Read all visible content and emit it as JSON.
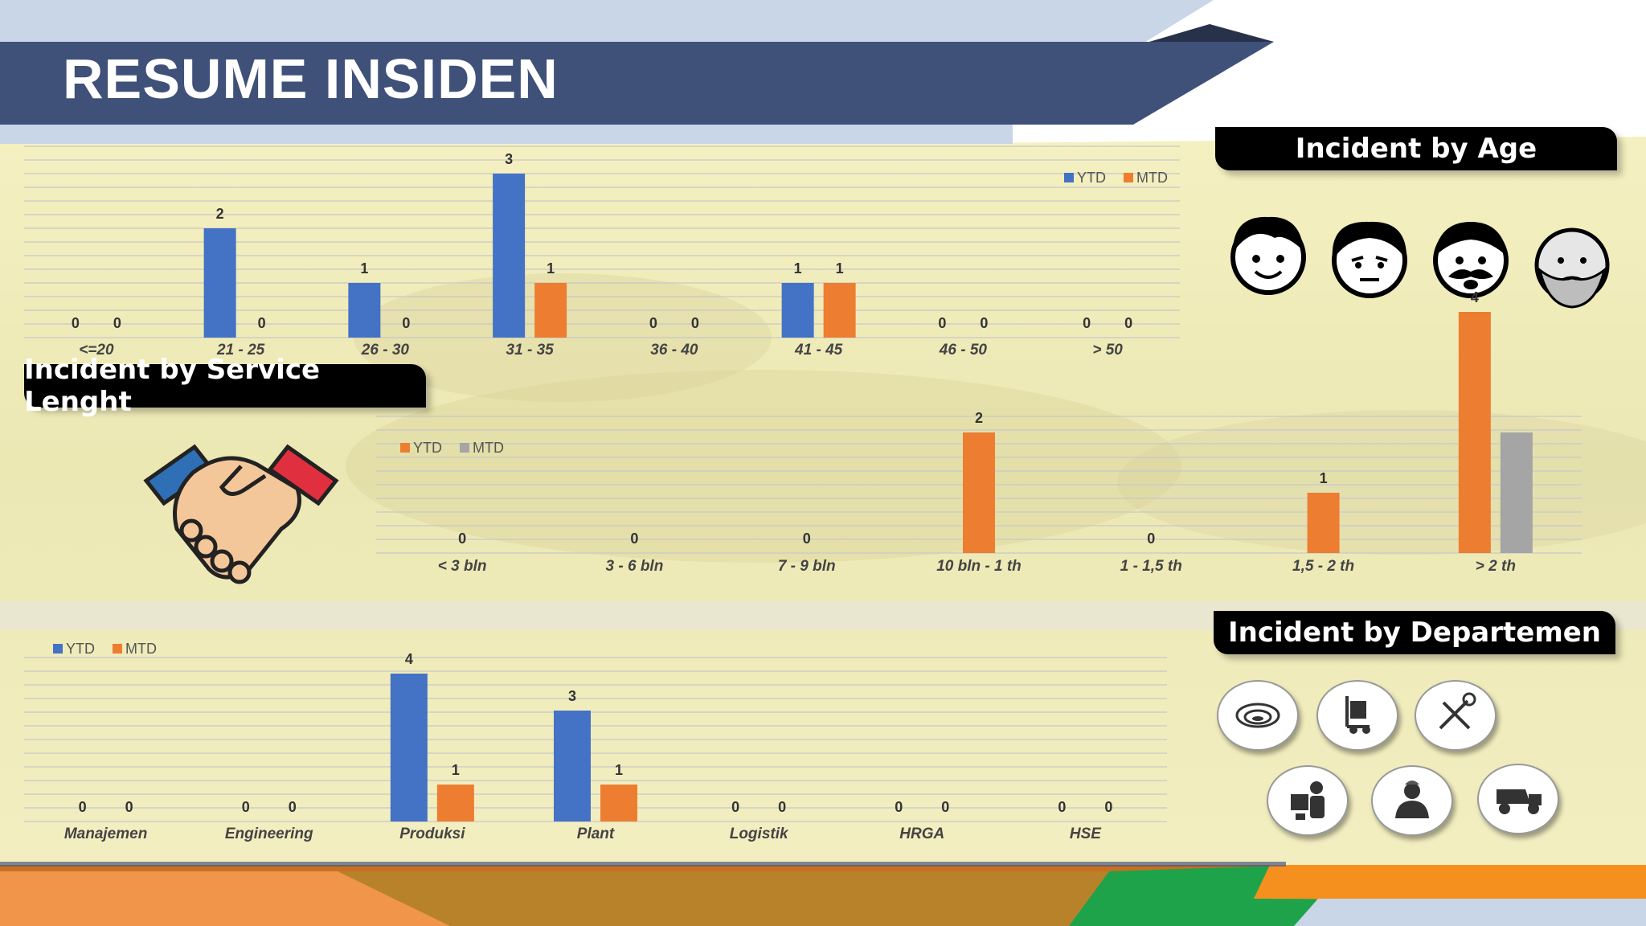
{
  "title": "RESUME INSIDEN",
  "panels": {
    "age_title": "Incident by Age",
    "service_title": "Incident by Service Lenght",
    "dept_title": "Incident by Departemen"
  },
  "colors": {
    "navy": "#3f5178",
    "ytd_blue": "#4472c4",
    "mtd_orange": "#ed7d31",
    "mtd_gray": "#a5a5a5"
  },
  "icons": {
    "age": [
      "young-face-icon",
      "adult-face-icon",
      "mustache-face-icon",
      "elder-face-icon"
    ],
    "dept": [
      "mine-pit-icon",
      "hand-truck-icon",
      "tools-icon",
      "worker-box-icon",
      "manager-icon",
      "dump-truck-icon"
    ],
    "service": "handshake-icon"
  },
  "chart_data": [
    {
      "type": "bar",
      "categories": [
        "<=20",
        "21 - 25",
        "26 - 30",
        "31 - 35",
        "36 - 40",
        "41 - 45",
        "46 - 50",
        "> 50"
      ],
      "series": [
        {
          "name": "YTD",
          "values": [
            0,
            2,
            1,
            3,
            0,
            1,
            0,
            0
          ],
          "color": "#4472c4"
        },
        {
          "name": "MTD",
          "values": [
            0,
            0,
            0,
            1,
            0,
            1,
            0,
            0
          ],
          "color": "#ed7d31"
        }
      ],
      "legend": "top-right",
      "grid": true
    },
    {
      "type": "bar",
      "categories": [
        "< 3 bln",
        "3 - 6 bln",
        "7 - 9 bln",
        "10 bln - 1 th",
        "1 - 1,5 th",
        "1,5 - 2 th",
        "> 2 th"
      ],
      "series": [
        {
          "name": "YTD",
          "values": [
            0,
            0,
            0,
            2,
            0,
            1,
            4
          ],
          "color": "#ed7d31"
        },
        {
          "name": "MTD",
          "values": [
            null,
            null,
            null,
            null,
            null,
            null,
            2
          ],
          "color": "#a5a5a5"
        }
      ],
      "legend": "top-left",
      "grid": true
    },
    {
      "type": "bar",
      "categories": [
        "Manajemen",
        "Engineering",
        "Produksi",
        "Plant",
        "Logistik",
        "HRGA",
        "HSE"
      ],
      "series": [
        {
          "name": "YTD",
          "values": [
            0,
            0,
            4,
            3,
            0,
            0,
            0
          ],
          "color": "#4472c4"
        },
        {
          "name": "MTD",
          "values": [
            0,
            0,
            1,
            1,
            0,
            0,
            0
          ],
          "color": "#ed7d31"
        }
      ],
      "legend": "top-left",
      "grid": true
    }
  ]
}
